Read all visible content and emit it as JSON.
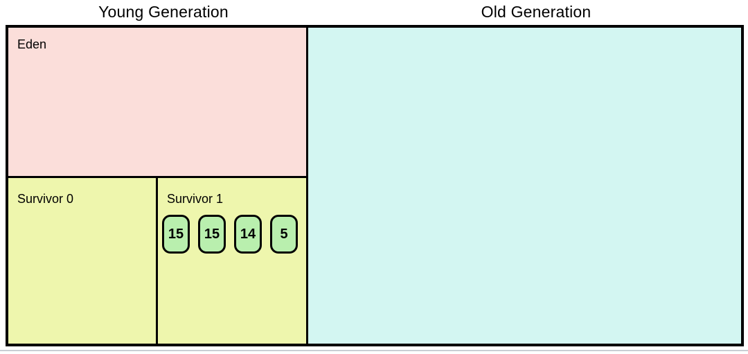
{
  "titles": {
    "young": "Young Generation",
    "old": "Old Generation"
  },
  "regions": {
    "eden": {
      "label": "Eden"
    },
    "survivor0": {
      "label": "Survivor 0"
    },
    "survivor1": {
      "label": "Survivor 1"
    }
  },
  "objects": {
    "ages": [
      "15",
      "15",
      "14",
      "5"
    ]
  },
  "colors": {
    "eden": "#fbdeda",
    "survivor": "#eef6ad",
    "old": "#d3f6f2",
    "object": "#b9efae",
    "border": "#000000",
    "bottom-line": "#c9ced4"
  }
}
